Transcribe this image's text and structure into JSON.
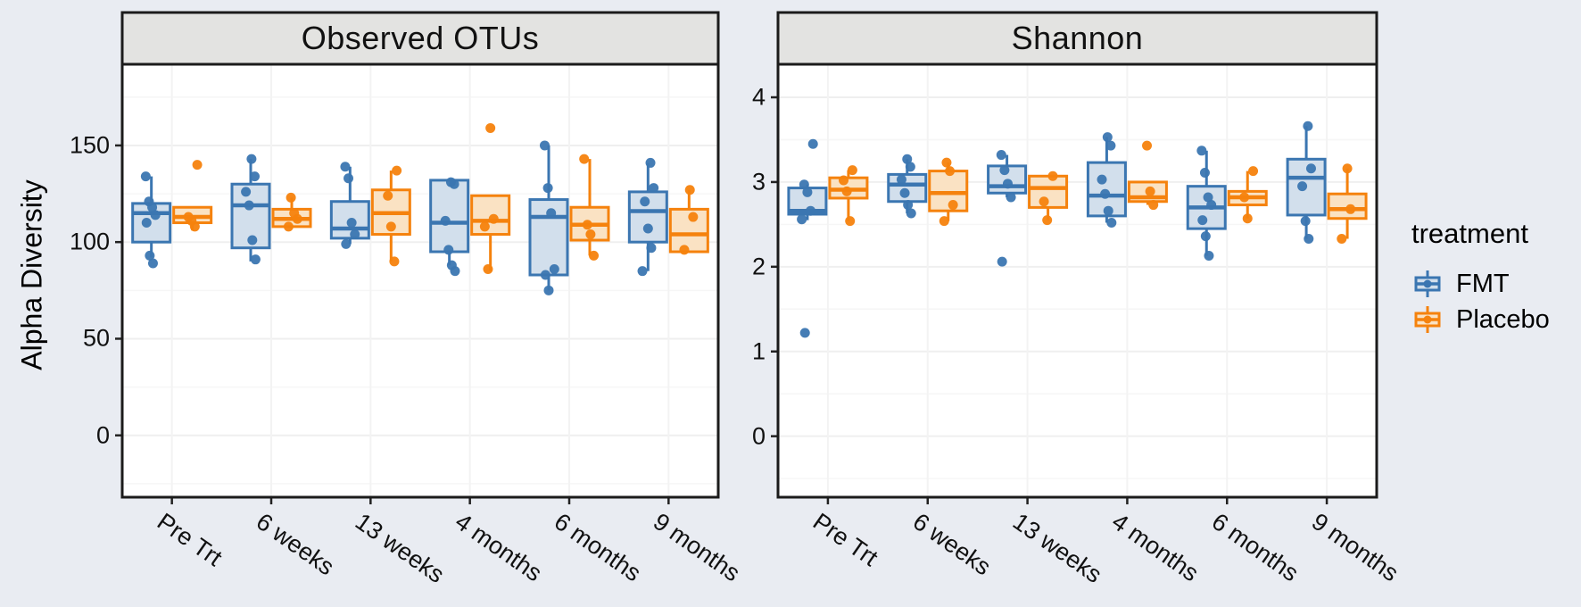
{
  "figure": {
    "y_axis_title": "Alpha Diversity",
    "background": "#E9ECF2"
  },
  "style": {
    "panel_bg": "#FFFFFF",
    "strip_bg": "#E3E3E1",
    "border_color": "#1B1B1B",
    "grid_major": "#EFEFEF",
    "grid_minor": "#F6F6F6",
    "grid_vertical": "#F3F3F3",
    "tick_color": "#222222"
  },
  "legend": {
    "title": "treatment",
    "position": "right",
    "entries": [
      {
        "label": "FMT",
        "color": "#3B76B1",
        "fill": "#D2DFEC"
      },
      {
        "label": "Placebo",
        "color": "#F5820D",
        "fill": "#FAE2C3"
      }
    ]
  },
  "chart_data": [
    {
      "type": "box",
      "title": "Observed OTUs",
      "xlabel": "",
      "ylabel": "Alpha Diversity",
      "ylim": [
        -32,
        192
      ],
      "yticks": [
        0,
        50,
        100,
        150
      ],
      "yticks_minor": [
        -25,
        25,
        75,
        125,
        175
      ],
      "grid": "faint",
      "categories": [
        "Pre Trt",
        "6 weeks",
        "13 weeks",
        "4 months",
        "6 months",
        "9 months"
      ],
      "series": [
        {
          "name": "FMT",
          "color": "#3B76B1",
          "fill": "#D2DFEC",
          "boxes": [
            {
              "lo": 92,
              "q1": 100,
              "med": 115,
              "q3": 120,
              "hi": 134,
              "points": [
                134,
                121,
                118,
                114,
                110,
                93,
                89
              ]
            },
            {
              "lo": 90,
              "q1": 97,
              "med": 119,
              "q3": 130,
              "hi": 143,
              "points": [
                143,
                134,
                126,
                119,
                101,
                91
              ]
            },
            {
              "lo": 99,
              "q1": 102,
              "med": 107,
              "q3": 121,
              "hi": 139,
              "points": [
                139,
                133,
                110,
                104,
                99
              ]
            },
            {
              "lo": 88,
              "q1": 95,
              "med": 110,
              "q3": 132,
              "hi": 132,
              "points": [
                131,
                130,
                111,
                96,
                88,
                85
              ]
            },
            {
              "lo": 75,
              "q1": 83,
              "med": 113,
              "q3": 122,
              "hi": 150,
              "points": [
                150,
                128,
                115,
                86,
                83,
                75
              ]
            },
            {
              "lo": 85,
              "q1": 100,
              "med": 116,
              "q3": 126,
              "hi": 141,
              "points": [
                141,
                128,
                121,
                107,
                97,
                85
              ]
            }
          ]
        },
        {
          "name": "Placebo",
          "color": "#F5820D",
          "fill": "#FAE2C3",
          "boxes": [
            {
              "lo": 106,
              "q1": 110,
              "med": 113,
              "q3": 118,
              "hi": 118,
              "points": [
                140,
                113,
                111,
                108
              ]
            },
            {
              "lo": 107,
              "q1": 108,
              "med": 112,
              "q3": 117,
              "hi": 123,
              "points": [
                123,
                115,
                112,
                108
              ]
            },
            {
              "lo": 90,
              "q1": 104,
              "med": 115,
              "q3": 127,
              "hi": 137,
              "points": [
                137,
                124,
                108,
                90
              ]
            },
            {
              "lo": 85,
              "q1": 104,
              "med": 111,
              "q3": 124,
              "hi": 124,
              "points": [
                159,
                112,
                108,
                86
              ]
            },
            {
              "lo": 93,
              "q1": 101,
              "med": 109,
              "q3": 118,
              "hi": 143,
              "points": [
                143,
                109,
                104,
                93
              ]
            },
            {
              "lo": 95,
              "q1": 95,
              "med": 104,
              "q3": 117,
              "hi": 127,
              "points": [
                127,
                113,
                96
              ]
            }
          ]
        }
      ]
    },
    {
      "type": "box",
      "title": "Shannon",
      "xlabel": "",
      "ylabel": "Alpha Diversity",
      "ylim": [
        -0.72,
        4.39
      ],
      "yticks": [
        0,
        1,
        2,
        3,
        4
      ],
      "yticks_minor": [
        -0.5,
        0.5,
        1.5,
        2.5,
        3.5
      ],
      "grid": "faint",
      "categories": [
        "Pre Trt",
        "6 weeks",
        "13 weeks",
        "4 months",
        "6 months",
        "9 months"
      ],
      "series": [
        {
          "name": "FMT",
          "color": "#3B76B1",
          "fill": "#D2DFEC",
          "boxes": [
            {
              "lo": 2.55,
              "q1": 2.62,
              "med": 2.66,
              "q3": 2.93,
              "hi": 2.97,
              "points": [
                3.45,
                2.97,
                2.88,
                2.66,
                2.56,
                1.22
              ]
            },
            {
              "lo": 2.63,
              "q1": 2.77,
              "med": 2.97,
              "q3": 3.09,
              "hi": 3.27,
              "points": [
                3.27,
                3.18,
                3.03,
                2.87,
                2.73,
                2.63
              ]
            },
            {
              "lo": 2.82,
              "q1": 2.87,
              "med": 2.95,
              "q3": 3.19,
              "hi": 3.32,
              "points": [
                3.32,
                3.14,
                2.98,
                2.82,
                2.06
              ]
            },
            {
              "lo": 2.52,
              "q1": 2.6,
              "med": 2.84,
              "q3": 3.23,
              "hi": 3.53,
              "points": [
                3.53,
                3.43,
                3.03,
                2.86,
                2.66,
                2.52
              ]
            },
            {
              "lo": 2.13,
              "q1": 2.45,
              "med": 2.7,
              "q3": 2.95,
              "hi": 3.37,
              "points": [
                3.37,
                3.11,
                2.82,
                2.73,
                2.55,
                2.36,
                2.13
              ]
            },
            {
              "lo": 2.33,
              "q1": 2.61,
              "med": 3.05,
              "q3": 3.27,
              "hi": 3.66,
              "points": [
                3.66,
                3.16,
                2.95,
                2.54,
                2.33
              ]
            }
          ]
        },
        {
          "name": "Placebo",
          "color": "#F5820D",
          "fill": "#FAE2C3",
          "boxes": [
            {
              "lo": 2.54,
              "q1": 2.81,
              "med": 2.91,
              "q3": 3.05,
              "hi": 3.14,
              "points": [
                3.14,
                3.02,
                2.89,
                2.54
              ]
            },
            {
              "lo": 2.54,
              "q1": 2.66,
              "med": 2.87,
              "q3": 3.13,
              "hi": 3.23,
              "points": [
                3.23,
                3.13,
                2.73,
                2.54
              ]
            },
            {
              "lo": 2.55,
              "q1": 2.7,
              "med": 2.93,
              "q3": 3.07,
              "hi": 3.07,
              "points": [
                3.07,
                2.77,
                2.55
              ]
            },
            {
              "lo": 2.73,
              "q1": 2.77,
              "med": 2.82,
              "q3": 3.0,
              "hi": 3.0,
              "points": [
                3.43,
                2.89,
                2.73
              ]
            },
            {
              "lo": 2.57,
              "q1": 2.73,
              "med": 2.82,
              "q3": 2.89,
              "hi": 3.13,
              "points": [
                3.13,
                2.82,
                2.57
              ]
            },
            {
              "lo": 2.33,
              "q1": 2.57,
              "med": 2.68,
              "q3": 2.86,
              "hi": 3.16,
              "points": [
                3.16,
                2.68,
                2.33
              ]
            }
          ]
        }
      ]
    }
  ]
}
